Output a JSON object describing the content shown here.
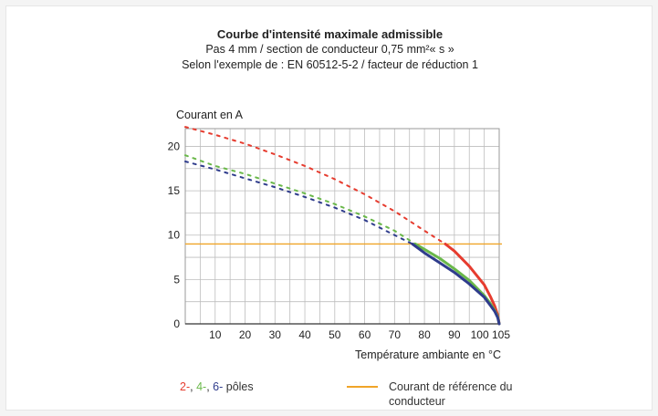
{
  "chart_data": {
    "type": "line",
    "title": "Courbe d'intensité maximale admissible",
    "subtitle_1": "Pas 4 mm / section de conducteur  0,75 mm²« s »",
    "subtitle_2": "Selon l'exemple de : EN 60512-5-2 / facteur de réduction 1",
    "ylabel": "Courant en A",
    "xlabel": "Température ambiante en °C",
    "xlim": [
      0,
      105
    ],
    "ylim": [
      0,
      22
    ],
    "x_ticks": [
      10,
      20,
      30,
      40,
      50,
      60,
      70,
      80,
      90,
      100,
      105
    ],
    "y_ticks": [
      0,
      5,
      10,
      15,
      20
    ],
    "grid": true,
    "series": [
      {
        "color": "#e63c2f",
        "dashed": {
          "x": [
            0,
            10,
            20,
            30,
            40,
            50,
            60,
            70,
            80,
            87
          ],
          "y": [
            22.2,
            21.3,
            20.3,
            19.1,
            17.8,
            16.3,
            14.6,
            12.7,
            10.5,
            9.0
          ]
        },
        "solid": {
          "x": [
            87,
            90,
            95,
            100,
            102,
            103.5,
            104.5,
            105
          ],
          "y": [
            9.0,
            8.2,
            6.5,
            4.4,
            3.1,
            2.0,
            1.0,
            0
          ]
        }
      },
      {
        "color": "#6ab84a",
        "dashed": {
          "x": [
            0,
            10,
            20,
            30,
            40,
            50,
            60,
            70,
            77
          ],
          "y": [
            19.0,
            17.8,
            16.9,
            15.8,
            14.7,
            13.5,
            12.1,
            10.5,
            9.0
          ]
        },
        "solid": {
          "x": [
            77,
            80,
            85,
            90,
            95,
            100,
            102,
            103.5,
            104.5,
            105
          ],
          "y": [
            9.0,
            8.4,
            7.4,
            6.2,
            4.9,
            3.2,
            2.3,
            1.5,
            0.8,
            0
          ]
        }
      },
      {
        "color": "#2f3c8c",
        "dashed": {
          "x": [
            0,
            10,
            20,
            30,
            40,
            50,
            60,
            70,
            76
          ],
          "y": [
            18.3,
            17.4,
            16.4,
            15.4,
            14.3,
            13.1,
            11.7,
            10.0,
            9.0
          ]
        },
        "solid": {
          "x": [
            76,
            80,
            85,
            90,
            95,
            100,
            102,
            103.5,
            104.5,
            105
          ],
          "y": [
            9.0,
            8.0,
            6.9,
            5.8,
            4.5,
            3.0,
            2.1,
            1.4,
            0.7,
            0
          ]
        }
      }
    ],
    "reference_line": {
      "y": 9,
      "color": "#f0a428"
    },
    "legend": {
      "poles": [
        {
          "text": "2-",
          "color": "#e63c2f"
        },
        {
          "text": ", ",
          "color": "#333333"
        },
        {
          "text": "4-",
          "color": "#6ab84a"
        },
        {
          "text": ", ",
          "color": "#333333"
        },
        {
          "text": "6-",
          "color": "#2f3c8c"
        },
        {
          "text": " pôles",
          "color": "#333333"
        }
      ],
      "reference_line1": "Courant de référence du",
      "reference_line2": "conducteur"
    }
  }
}
